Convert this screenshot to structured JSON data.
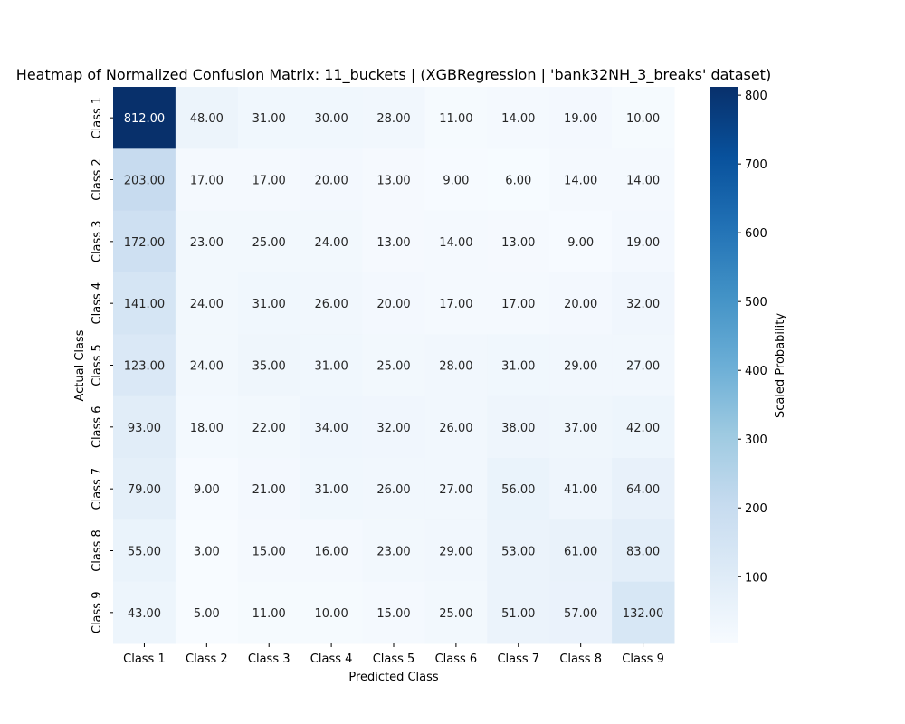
{
  "chart_data": {
    "type": "heatmap",
    "title": "Heatmap of Normalized Confusion Matrix: 11_buckets | (XGBRegression | 'bank32NH_3_breaks' dataset)",
    "xlabel": "Predicted Class",
    "ylabel": "Actual Class",
    "x_categories": [
      "Class 1",
      "Class 2",
      "Class 3",
      "Class 4",
      "Class 5",
      "Class 6",
      "Class 7",
      "Class 8",
      "Class 9"
    ],
    "y_categories": [
      "Class 1",
      "Class 2",
      "Class 3",
      "Class 4",
      "Class 5",
      "Class 6",
      "Class 7",
      "Class 8",
      "Class 9"
    ],
    "values": [
      [
        812,
        48,
        31,
        30,
        28,
        11,
        14,
        19,
        10
      ],
      [
        203,
        17,
        17,
        20,
        13,
        9,
        6,
        14,
        14
      ],
      [
        172,
        23,
        25,
        24,
        13,
        14,
        13,
        9,
        19
      ],
      [
        141,
        24,
        31,
        26,
        20,
        17,
        17,
        20,
        32
      ],
      [
        123,
        24,
        35,
        31,
        25,
        28,
        31,
        29,
        27
      ],
      [
        93,
        18,
        22,
        34,
        32,
        26,
        38,
        37,
        42
      ],
      [
        79,
        9,
        21,
        31,
        26,
        27,
        56,
        41,
        64
      ],
      [
        55,
        3,
        15,
        16,
        23,
        29,
        53,
        61,
        83
      ],
      [
        43,
        5,
        11,
        10,
        15,
        25,
        51,
        57,
        132
      ]
    ],
    "value_format": "2 decimals",
    "colormap": "Blues",
    "colorbar": {
      "label": "Scaled Probability",
      "range": [
        3,
        812
      ],
      "ticks": [
        100,
        200,
        300,
        400,
        500,
        600,
        700,
        800
      ]
    }
  }
}
